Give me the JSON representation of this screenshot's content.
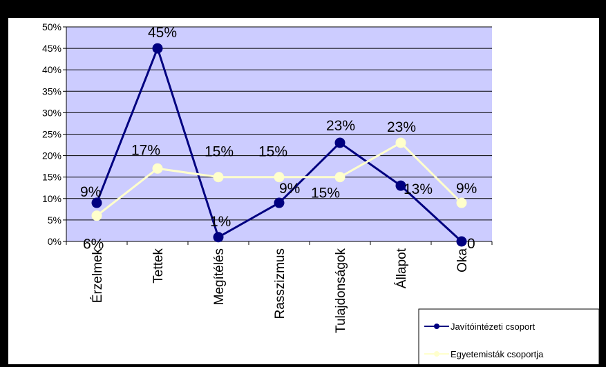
{
  "chart_data": {
    "type": "line",
    "categories": [
      "Érzelmek",
      "Tettek",
      "Megítélés",
      "Rasszizmus",
      "Tulajdonságok",
      "Állapot",
      "Oka"
    ],
    "ylim": [
      0,
      50
    ],
    "y_ticks": [
      "0%",
      "5%",
      "10%",
      "15%",
      "20%",
      "25%",
      "30%",
      "35%",
      "40%",
      "45%",
      "50%"
    ],
    "grid": true,
    "legend_position": "bottom-right",
    "plot_background": "#ccccff",
    "series": [
      {
        "name": "Javítóintézeti csoport",
        "color": "#000080",
        "values": [
          9,
          45,
          1,
          9,
          23,
          13,
          0
        ],
        "data_labels": [
          "9%",
          "45%",
          "1%",
          "9%",
          "23%",
          "13%",
          "0"
        ]
      },
      {
        "name": "Egyetemisták csoportja",
        "color": "#ffffcc",
        "values": [
          6,
          17,
          15,
          15,
          15,
          23,
          9
        ],
        "data_labels": [
          "6%",
          "17%",
          "15%",
          "15%",
          "15%",
          "23%",
          "9%"
        ]
      }
    ]
  }
}
